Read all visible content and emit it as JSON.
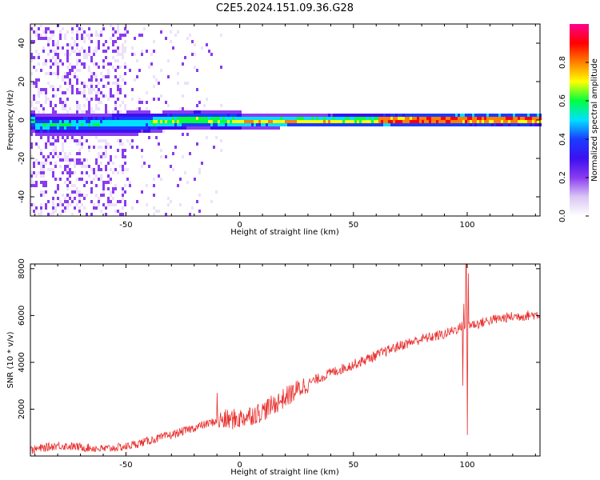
{
  "title": "C2E5.2024.151.09.36.G28",
  "colors": {
    "snr_line": "#e8302e",
    "axis": "#000000",
    "background": "#ffffff",
    "colormap": [
      "#ffffff",
      "#d9c6f5",
      "#8a3cf0",
      "#3c10f0",
      "#1a3cff",
      "#00e0ff",
      "#00ff40",
      "#ffff00",
      "#ff8000",
      "#ff0000",
      "#ff0090"
    ]
  },
  "chart_data": [
    {
      "type": "heatmap",
      "title": "C2E5.2024.151.09.36.G28",
      "xlabel": "Height of straight line (km)",
      "ylabel": "Frequency (Hz)",
      "xlim": [
        -92,
        132
      ],
      "ylim": [
        -50,
        50
      ],
      "x_ticks": [
        -50,
        0,
        50,
        100
      ],
      "y_ticks": [
        -40,
        -20,
        0,
        20,
        40
      ],
      "grid": false,
      "description_values": {
        "ridge_frequency_hz": [
          {
            "x": -90,
            "y": -2
          },
          {
            "x": -50,
            "y": -1
          },
          {
            "x": -20,
            "y": 1
          },
          {
            "x": 0,
            "y": 0
          },
          {
            "x": 50,
            "y": 0.5
          },
          {
            "x": 100,
            "y": 1
          },
          {
            "x": 132,
            "y": 1
          }
        ]
      },
      "colorbar": {
        "label": "Normalized spectral amplitude",
        "range": [
          0.0,
          1.0
        ],
        "ticks": [
          "0.0",
          "0.2",
          "0.4",
          "0.6",
          "0.8"
        ],
        "tick_values": [
          0.0,
          0.2,
          0.4,
          0.6,
          0.8
        ]
      }
    },
    {
      "type": "line",
      "title": "",
      "xlabel": "Height of straight line (km)",
      "ylabel": "SNR (10 * v/v)",
      "xlim": [
        -92,
        132
      ],
      "ylim": [
        0,
        8200
      ],
      "x_ticks": [
        -50,
        0,
        50,
        100
      ],
      "y_ticks": [
        2000,
        4000,
        6000,
        8000
      ],
      "grid": false,
      "series": [
        {
          "x": [
            -92,
            -80,
            -70,
            -60,
            -50,
            -40,
            -30,
            -20,
            -10,
            0,
            10,
            20,
            30,
            40,
            50,
            60,
            70,
            80,
            90,
            97,
            100,
            105,
            110,
            120,
            132
          ],
          "y": [
            250,
            450,
            380,
            300,
            400,
            650,
            900,
            1200,
            1500,
            1600,
            1900,
            2500,
            3100,
            3550,
            3900,
            4300,
            4700,
            5000,
            5200,
            5500,
            5600,
            5650,
            5800,
            5950,
            6050
          ]
        },
        {
          "spikes": [
            {
              "x": -10,
              "y": 2700
            },
            {
              "x": 98,
              "y": 3000
            },
            {
              "x": 98.5,
              "y": 6500
            },
            {
              "x": 99.5,
              "y": 8200
            },
            {
              "x": 100,
              "y": 900
            },
            {
              "x": 100.5,
              "y": 7800
            }
          ]
        }
      ]
    }
  ]
}
